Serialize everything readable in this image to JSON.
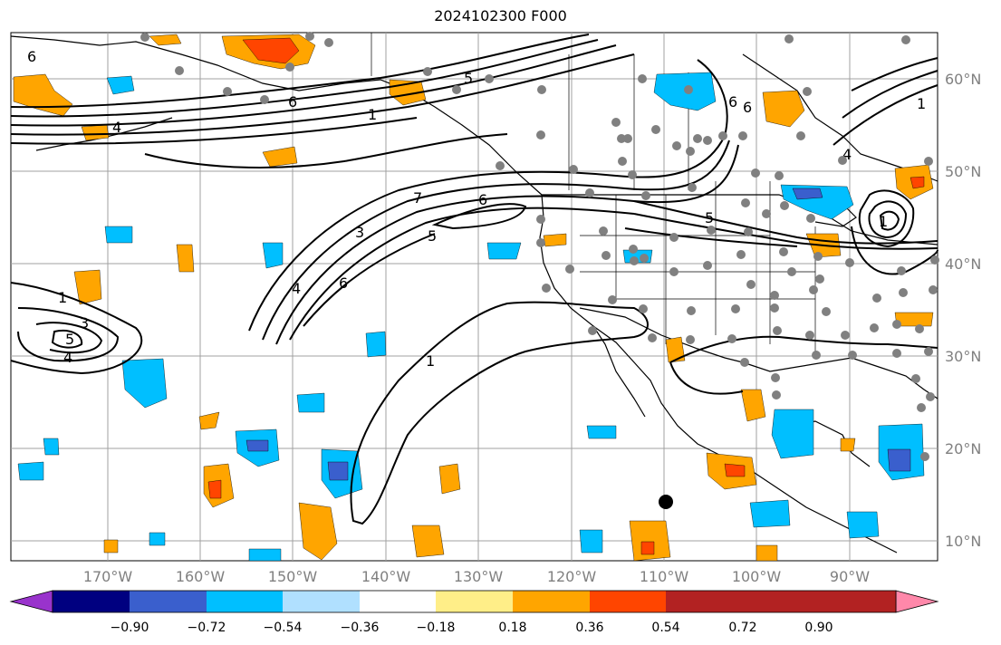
{
  "title": "2024102300 F000",
  "lat_labels": [
    "60°N",
    "50°N",
    "40°N",
    "30°N",
    "20°N",
    "10°N"
  ],
  "lon_labels": [
    "170°W",
    "160°W",
    "150°W",
    "140°W",
    "130°W",
    "120°W",
    "110°W",
    "100°W",
    "90°W"
  ],
  "colorbar": {
    "ticks": [
      "−0.90",
      "−0.72",
      "−0.54",
      "−0.36",
      "−0.18",
      "0.18",
      "0.36",
      "0.54",
      "0.72",
      "0.90"
    ],
    "colors": [
      "#9933cc",
      "#000080",
      "#3a5fcd",
      "#00bfff",
      "#b0e0ff",
      "#ffffff",
      "#ffee88",
      "#ffa500",
      "#ff4500",
      "#b22222",
      "#ff88aa"
    ]
  },
  "contour_labels": [
    "6",
    "6",
    "4",
    "1",
    "5",
    "6",
    "7",
    "6",
    "5",
    "3",
    "6",
    "4",
    "1",
    "3",
    "5",
    "4",
    "1",
    "1",
    "5",
    "6",
    "1",
    "4"
  ],
  "colors": {
    "land_outline": "#000000",
    "grid": "#a0a0a0",
    "contour": "#000000",
    "station_dot": "#808080"
  }
}
